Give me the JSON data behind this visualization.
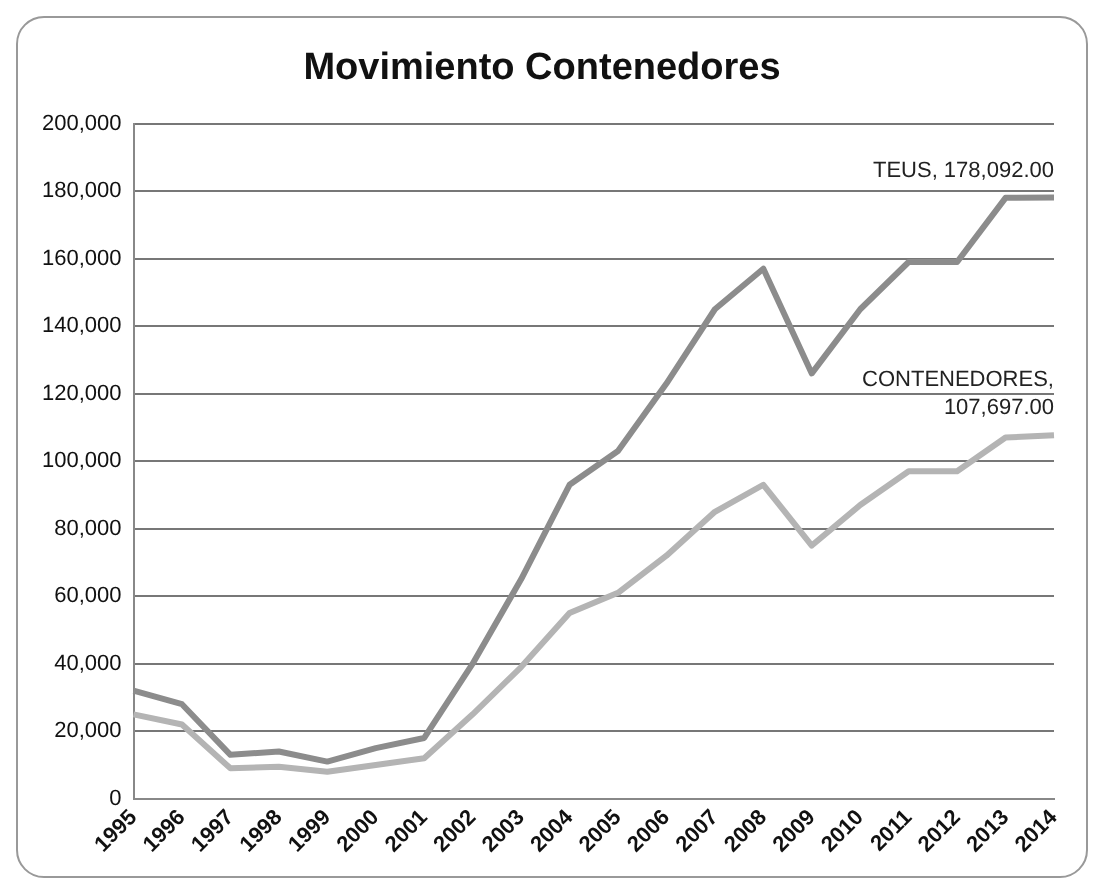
{
  "chart_data": {
    "type": "line",
    "title": "Movimiento Contenedores",
    "categories": [
      "1995",
      "1996",
      "1997",
      "1998",
      "1999",
      "2000",
      "2001",
      "2002",
      "2003",
      "2004",
      "2005",
      "2006",
      "2007",
      "2008",
      "2009",
      "2010",
      "2011",
      "2012",
      "2013",
      "2014"
    ],
    "series": [
      {
        "color": "#8c8c8c",
        "values": [
          32000,
          28000,
          13000,
          14000,
          11000,
          15000,
          18000,
          40000,
          65000,
          93000,
          103000,
          123000,
          145000,
          157000,
          126000,
          145000,
          159000,
          159000,
          178000,
          178092
        ],
        "value_labels": [
          null,
          null,
          null,
          null,
          null,
          null,
          null,
          null,
          null,
          null,
          null,
          null,
          null,
          null,
          null,
          null,
          null,
          null,
          null,
          "TEUS, 178,092.00"
        ]
      },
      {
        "color": "#b4b4b4",
        "values": [
          25000,
          22000,
          9000,
          9500,
          8000,
          10000,
          12000,
          25000,
          39000,
          55000,
          61000,
          72000,
          85000,
          93000,
          75000,
          87000,
          97000,
          97000,
          107000,
          107697
        ],
        "value_labels": [
          null,
          null,
          null,
          null,
          null,
          null,
          null,
          null,
          null,
          null,
          null,
          null,
          null,
          null,
          null,
          null,
          null,
          null,
          null,
          "CONTENEDORES, 107,697.00"
        ]
      }
    ],
    "ylim": [
      0,
      200000
    ],
    "yticks": [
      0,
      {
        "value": 20000,
        "label": "20,000"
      },
      {
        "value": 40000,
        "label": "40,000"
      },
      {
        "value": 60000,
        "label": "60,000"
      },
      {
        "value": 80000,
        "label": "80,000"
      },
      {
        "value": 100000,
        "label": "100,000"
      },
      {
        "value": 120000,
        "label": "120,000"
      },
      {
        "value": 140000,
        "label": "140,000"
      },
      {
        "value": 160000,
        "label": "160,000"
      },
      {
        "value": 180000,
        "label": "180,000"
      },
      {
        "value": 200000,
        "label": "200,000"
      }
    ],
    "grid": "y",
    "legend": false,
    "marker": "none",
    "line_style": "solid"
  }
}
